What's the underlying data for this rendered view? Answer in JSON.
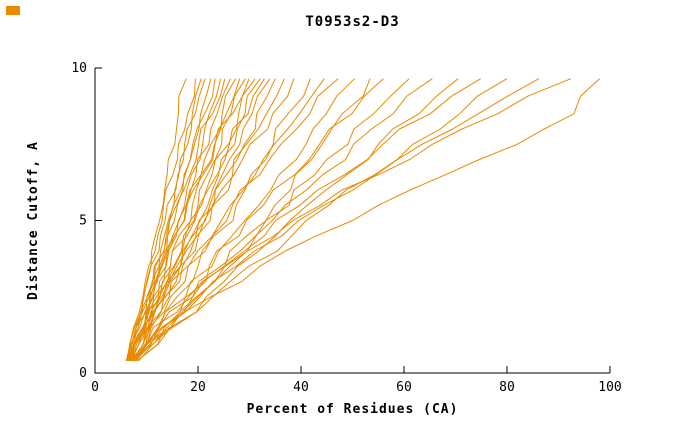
{
  "chart_data": {
    "type": "line",
    "title": "T0953s2-D3",
    "xlabel": "Percent of Residues (CA)",
    "ylabel": "Distance Cutoff, A",
    "xlim": [
      0,
      100
    ],
    "ylim": [
      0,
      10
    ],
    "x_ticks": [
      0,
      20,
      40,
      60,
      80,
      100
    ],
    "y_ticks": [
      0,
      5,
      10
    ],
    "grid": false,
    "legend": "none",
    "line_color": "#e88a00",
    "axis_color": "#000000",
    "y_samples": [
      0.4,
      1.5,
      2.5,
      3.5,
      4.5,
      5.5,
      6.5,
      7.5,
      8.5,
      9.65
    ],
    "series": [
      [
        6.6,
        8.4,
        9.3,
        10.9,
        11.7,
        13.2,
        14.0,
        15.5,
        16.2,
        17.7
      ],
      [
        6.1,
        7.5,
        9.3,
        10.4,
        12.2,
        13.3,
        15.1,
        16.2,
        18.0,
        19.5
      ],
      [
        7.0,
        9.3,
        10.6,
        12.4,
        13.5,
        15.3,
        16.3,
        18.0,
        18.9,
        20.6
      ],
      [
        6.3,
        7.7,
        9.5,
        10.8,
        12.7,
        14.0,
        16.1,
        17.4,
        19.5,
        21.4
      ],
      [
        7.2,
        9.4,
        10.8,
        12.8,
        14.1,
        16.0,
        17.3,
        19.3,
        20.5,
        22.5
      ],
      [
        6.2,
        8.0,
        10.1,
        11.5,
        13.8,
        15.2,
        17.5,
        19.0,
        21.3,
        23.3
      ],
      [
        7.1,
        9.7,
        11.4,
        13.7,
        15.1,
        17.4,
        18.7,
        20.9,
        22.2,
        24.4
      ],
      [
        6.4,
        8.0,
        10.2,
        11.7,
        14.1,
        15.8,
        18.4,
        20.1,
        22.8,
        25.2
      ],
      [
        7.1,
        9.6,
        11.3,
        13.8,
        15.4,
        17.9,
        19.6,
        22.1,
        23.7,
        26.3
      ],
      [
        6.9,
        9.9,
        11.9,
        14.6,
        16.3,
        18.9,
        20.6,
        23.2,
        24.7,
        27.3
      ],
      [
        6.7,
        8.7,
        11.2,
        13.0,
        15.8,
        17.7,
        20.6,
        22.5,
        25.5,
        28.1
      ],
      [
        7.4,
        10.5,
        12.6,
        15.3,
        17.2,
        20.0,
        21.8,
        24.6,
        26.4,
        29.2
      ],
      [
        6.0,
        8.0,
        10.5,
        12.5,
        15.5,
        17.7,
        21.0,
        23.3,
        26.7,
        29.9
      ],
      [
        7.2,
        10.3,
        12.5,
        15.5,
        17.6,
        20.7,
        22.7,
        25.9,
        27.9,
        31.1
      ],
      [
        7.3,
        10.9,
        13.4,
        16.6,
        18.8,
        21.9,
        24.0,
        27.1,
        29.1,
        32.1
      ],
      [
        6.8,
        9.3,
        12.3,
        14.6,
        17.9,
        20.3,
        23.7,
        26.1,
        29.7,
        32.9
      ],
      [
        7.4,
        10.8,
        13.3,
        16.6,
        19.0,
        22.3,
        24.7,
        28.1,
        30.5,
        34.0
      ],
      [
        7.0,
        10.8,
        13.6,
        17.0,
        19.6,
        23.1,
        25.5,
        29.0,
        31.4,
        35.0
      ],
      [
        7.2,
        10.3,
        13.7,
        16.5,
        20.1,
        22.9,
        26.7,
        29.4,
        33.3,
        36.8
      ],
      [
        6.7,
        9.6,
        13.0,
        15.9,
        19.8,
        22.8,
        27.0,
        30.1,
        34.5,
        38.6
      ],
      [
        7.9,
        12.5,
        15.9,
        20.0,
        23.1,
        27.4,
        30.3,
        34.6,
        37.5,
        41.8
      ],
      [
        6.9,
        10.5,
        14.7,
        18.1,
        22.8,
        26.3,
        31.1,
        34.8,
        39.7,
        44.5
      ],
      [
        6.9,
        10.2,
        14.4,
        18.0,
        22.8,
        26.7,
        32.0,
        36.1,
        41.7,
        47.2
      ],
      [
        8.2,
        13.5,
        17.6,
        22.7,
        26.6,
        31.8,
        35.7,
        41.0,
        44.9,
        50.4
      ],
      [
        8.5,
        14.9,
        19.7,
        25.2,
        29.5,
        34.9,
        38.9,
        44.1,
        48.0,
        53.4
      ],
      [
        7.6,
        12.3,
        17.7,
        22.2,
        28.0,
        32.7,
        38.8,
        43.6,
        49.9,
        56.0
      ],
      [
        8.2,
        14.7,
        20.0,
        26.2,
        31.3,
        37.7,
        42.7,
        49.1,
        54.1,
        61.0
      ],
      [
        7.7,
        13.0,
        19.0,
        24.4,
        31.2,
        36.9,
        44.2,
        50.2,
        57.9,
        65.5
      ],
      [
        7.9,
        14.6,
        21.6,
        27.7,
        35.1,
        41.2,
        48.9,
        55.0,
        62.9,
        70.5
      ],
      [
        7.3,
        12.5,
        19.0,
        25.1,
        32.9,
        39.8,
        48.4,
        55.9,
        65.1,
        74.9
      ],
      [
        8.0,
        15.1,
        22.9,
        29.8,
        38.2,
        45.4,
        54.3,
        61.7,
        70.8,
        80.0
      ],
      [
        7.6,
        13.2,
        20.4,
        27.4,
        36.3,
        44.4,
        54.5,
        63.5,
        74.4,
        86.2
      ],
      [
        6.6,
        11.3,
        18.2,
        25.3,
        34.8,
        43.7,
        55.0,
        65.5,
        78.2,
        92.4
      ],
      [
        6.5,
        14.0,
        22.5,
        32.0,
        43.0,
        55.0,
        68.0,
        82.0,
        93.0,
        98.0
      ]
    ]
  },
  "decorations": {
    "corner_marker_color": "#e88a00"
  }
}
